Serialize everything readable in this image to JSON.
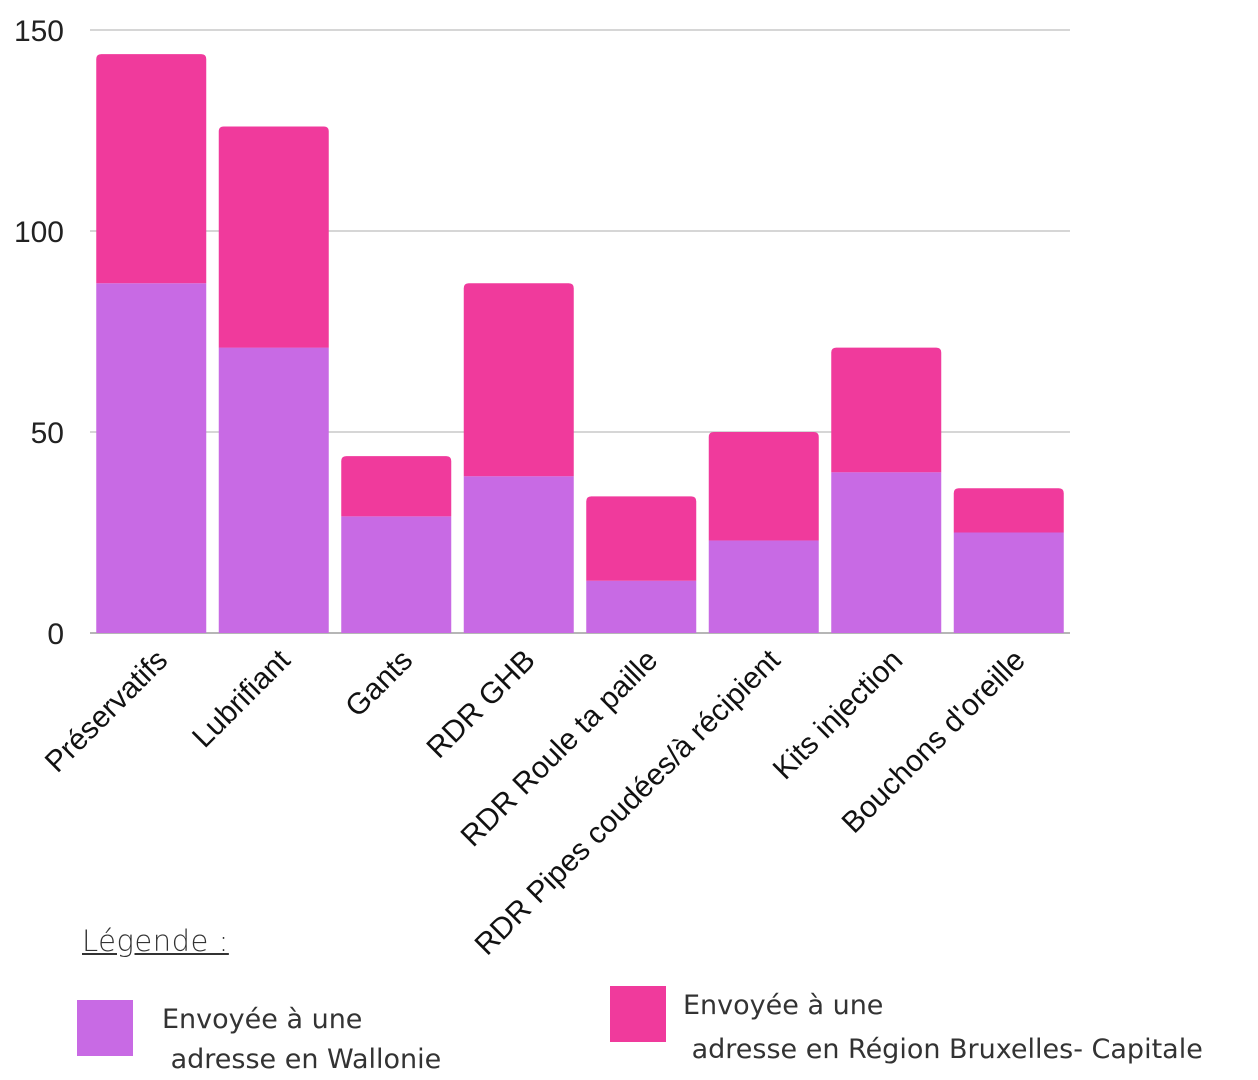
{
  "chart_data": {
    "type": "bar",
    "stacked": true,
    "categories": [
      "Préservatifs",
      "Lubrifiant",
      "Gants",
      "RDR GHB",
      "RDR Roule ta paille",
      "RDR Pipes coudées/à récipient",
      "Kits injection",
      "Bouchons d'oreille"
    ],
    "series": [
      {
        "name": "Envoyée à une adresse en Wallonie",
        "color": "#c86ae4",
        "values": [
          87,
          71,
          29,
          39,
          13,
          23,
          40,
          25
        ]
      },
      {
        "name": "Envoyée à une adresse en Région Bruxelles- Capitale",
        "color": "#f03a9c",
        "values": [
          57,
          55,
          15,
          48,
          21,
          27,
          31,
          11
        ]
      }
    ],
    "yticks": [
      0,
      50,
      100,
      150
    ],
    "ylim": [
      0,
      150
    ],
    "grid": true,
    "legend_position": "bottom",
    "title": "",
    "xlabel": "",
    "ylabel": ""
  },
  "legend": {
    "title": "Légende :",
    "items": [
      {
        "line1": "Envoyée à une",
        "line2": " adresse en Wallonie",
        "color": "#c86ae4"
      },
      {
        "line1": "Envoyée à une",
        "line2": " adresse en Région Bruxelles- Capitale",
        "color": "#f03a9c"
      }
    ]
  }
}
